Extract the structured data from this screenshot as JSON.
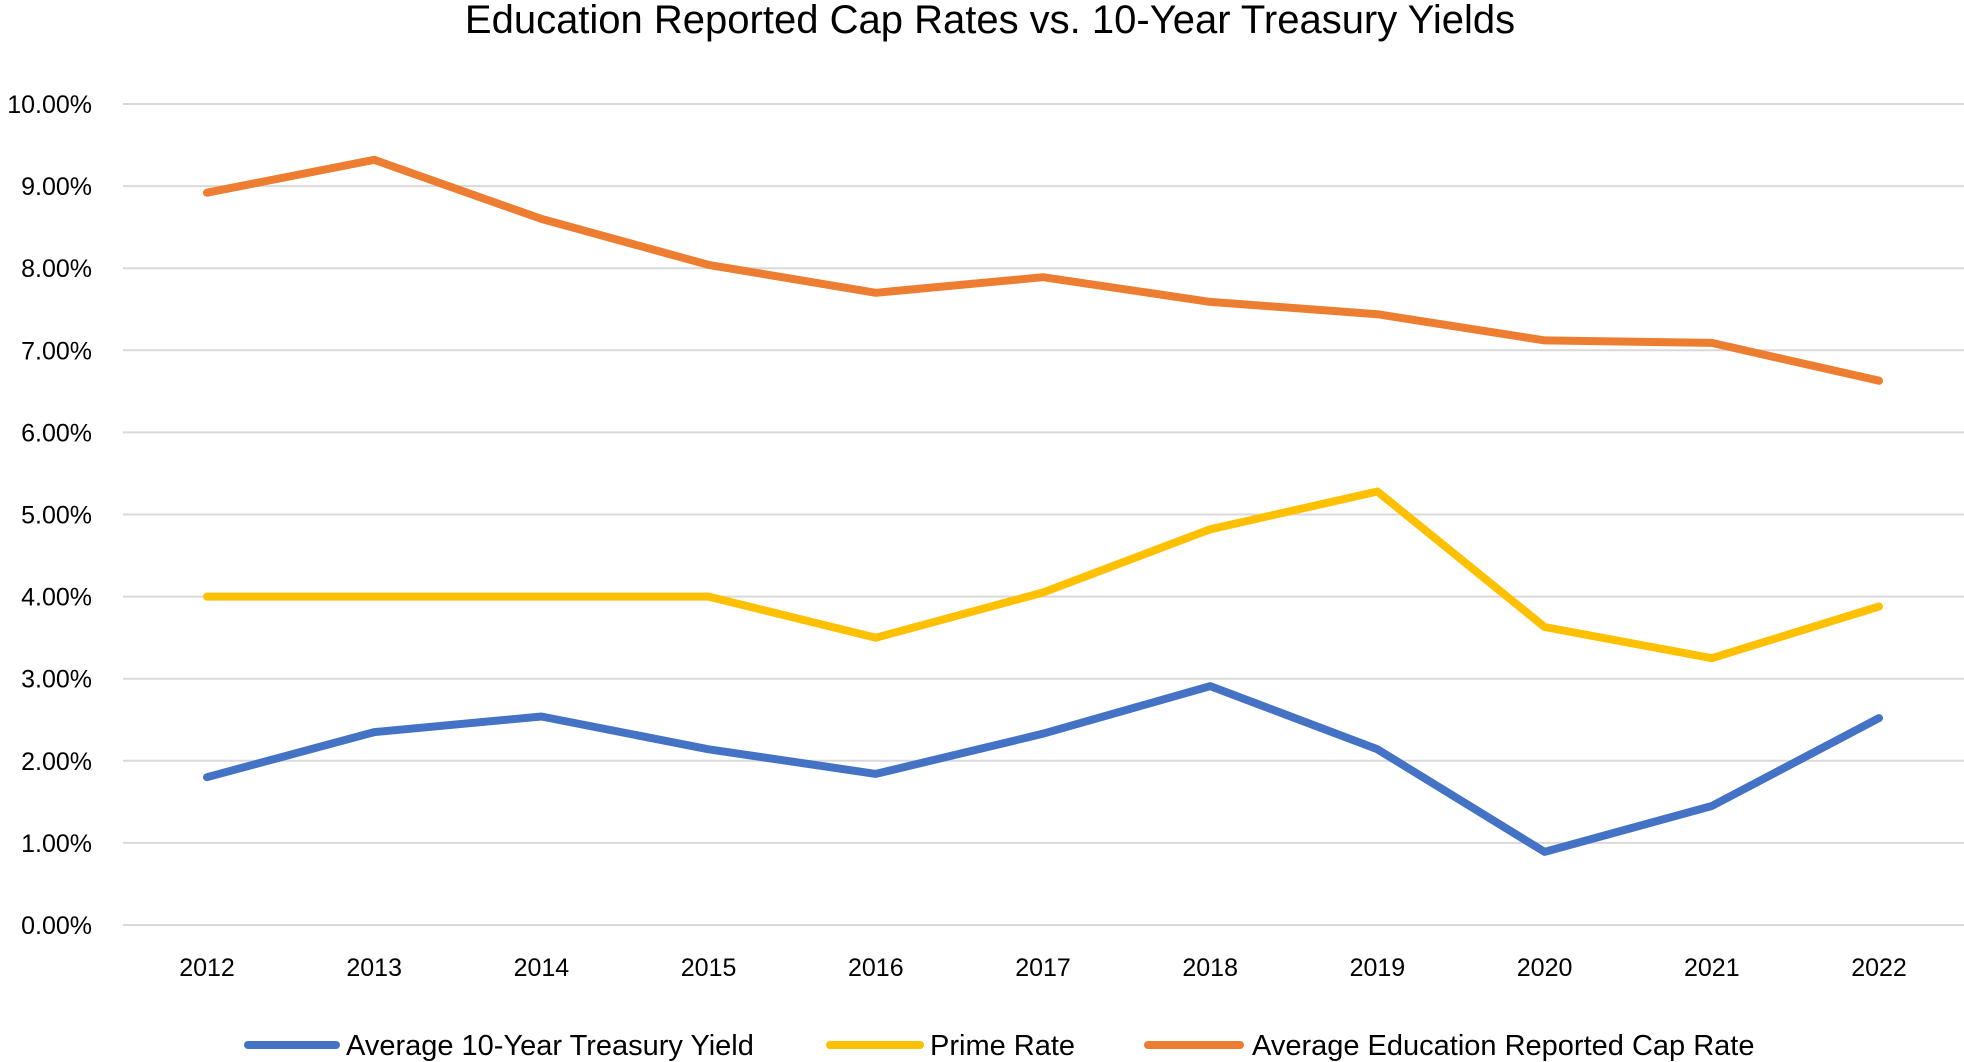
{
  "chart_data": {
    "type": "line",
    "title": "Education Reported Cap Rates vs. 10-Year Treasury Yields",
    "xlabel": "",
    "ylabel": "",
    "categories": [
      "2012",
      "2013",
      "2014",
      "2015",
      "2016",
      "2017",
      "2018",
      "2019",
      "2020",
      "2021",
      "2022"
    ],
    "ylim": [
      0,
      10
    ],
    "yticks": [
      "0.00%",
      "1.00%",
      "2.00%",
      "3.00%",
      "4.00%",
      "5.00%",
      "6.00%",
      "7.00%",
      "8.00%",
      "9.00%",
      "10.00%"
    ],
    "grid": true,
    "legend_position": "bottom",
    "series": [
      {
        "name": "Average 10-Year Treasury Yield",
        "color": "#4472c4",
        "values": [
          1.8,
          2.35,
          2.54,
          2.14,
          1.84,
          2.33,
          2.91,
          2.14,
          0.89,
          1.45,
          2.52
        ]
      },
      {
        "name": "Prime Rate",
        "color": "#ffc000",
        "values": [
          4.0,
          4.0,
          4.0,
          4.0,
          3.5,
          4.05,
          4.82,
          5.28,
          3.63,
          3.25,
          3.88
        ]
      },
      {
        "name": "Average Education Reported Cap Rate",
        "color": "#ed7d31",
        "values": [
          8.92,
          9.32,
          8.6,
          8.04,
          7.7,
          7.89,
          7.59,
          7.44,
          7.12,
          7.09,
          6.63
        ]
      }
    ]
  }
}
